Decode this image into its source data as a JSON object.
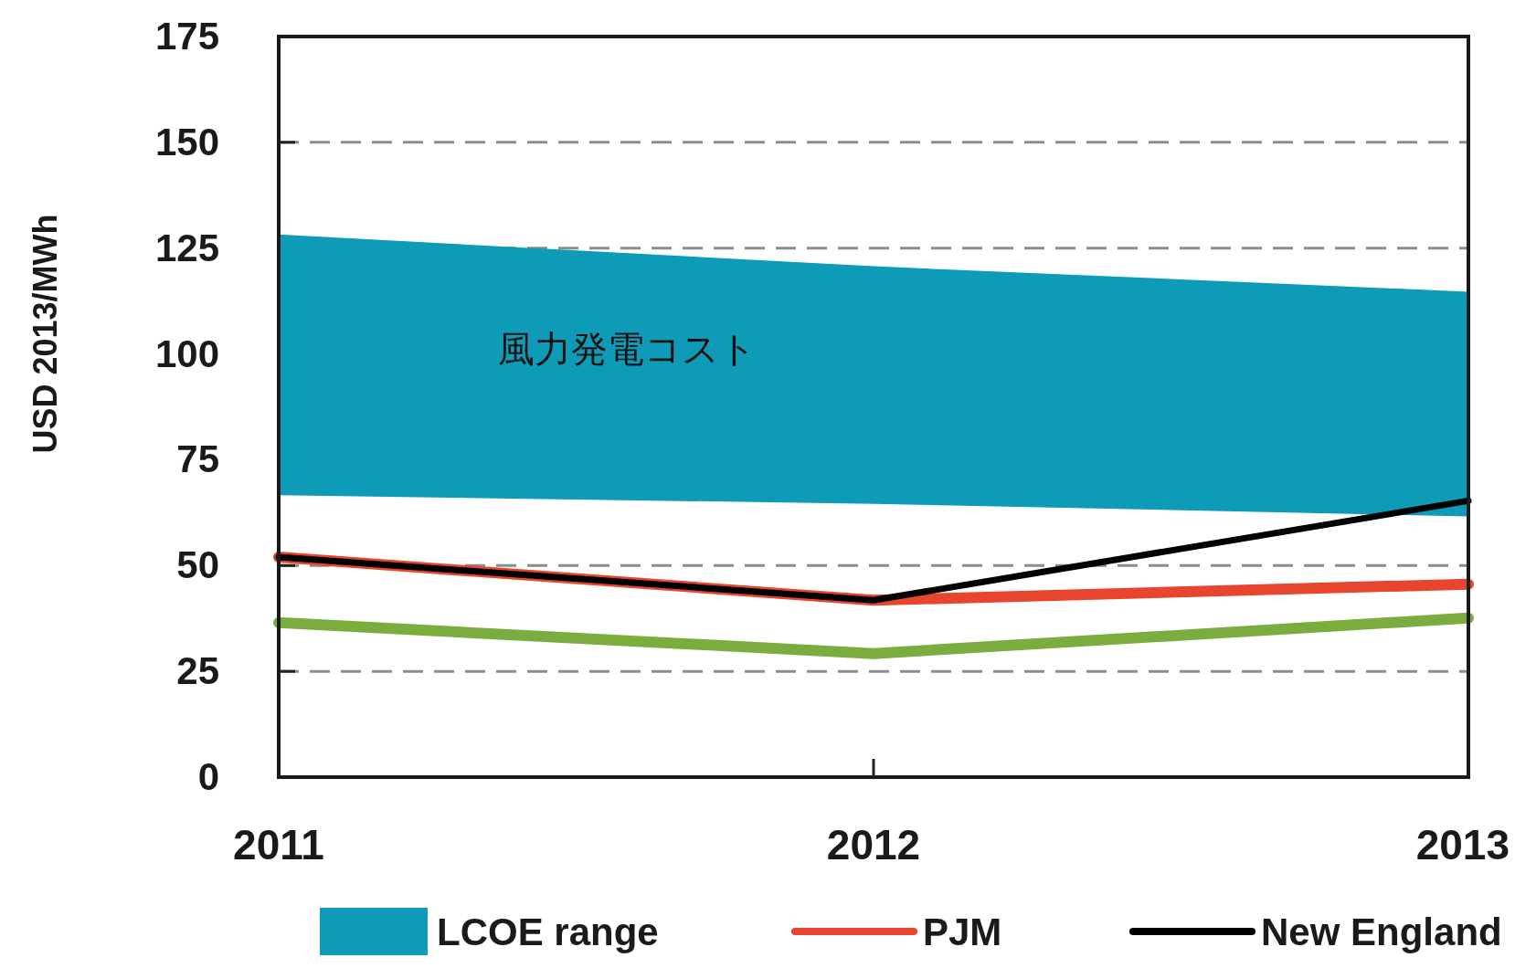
{
  "chart_data": {
    "type": "line",
    "ylabel": "USD 2013/MWh",
    "categories": [
      "2011",
      "2012",
      "2013"
    ],
    "ylim": [
      0,
      175
    ],
    "yticks": [
      0,
      25,
      50,
      75,
      100,
      125,
      150,
      175
    ],
    "grid": "y",
    "legend": "bottom",
    "marker": "none",
    "line_style": "solid",
    "series": [
      {
        "name": "LCOE range",
        "color": "#0d9bb8",
        "values": [
          128,
          120.5,
          114.5
        ],
        "lower": [
          66.6,
          64.6,
          61.6
        ],
        "upper": [
          128,
          120.5,
          114.5
        ]
      },
      {
        "color": "#7aad3e",
        "values": [
          36.5,
          29.2,
          37.6
        ]
      },
      {
        "name": "PJM",
        "color": "#e8452f",
        "values": [
          52,
          41.8,
          45.6
        ]
      },
      {
        "name": "New England",
        "color": "#000000",
        "values": [
          52,
          41.8,
          65.3
        ]
      }
    ],
    "annotations": [
      "風力発電コスト"
    ]
  }
}
